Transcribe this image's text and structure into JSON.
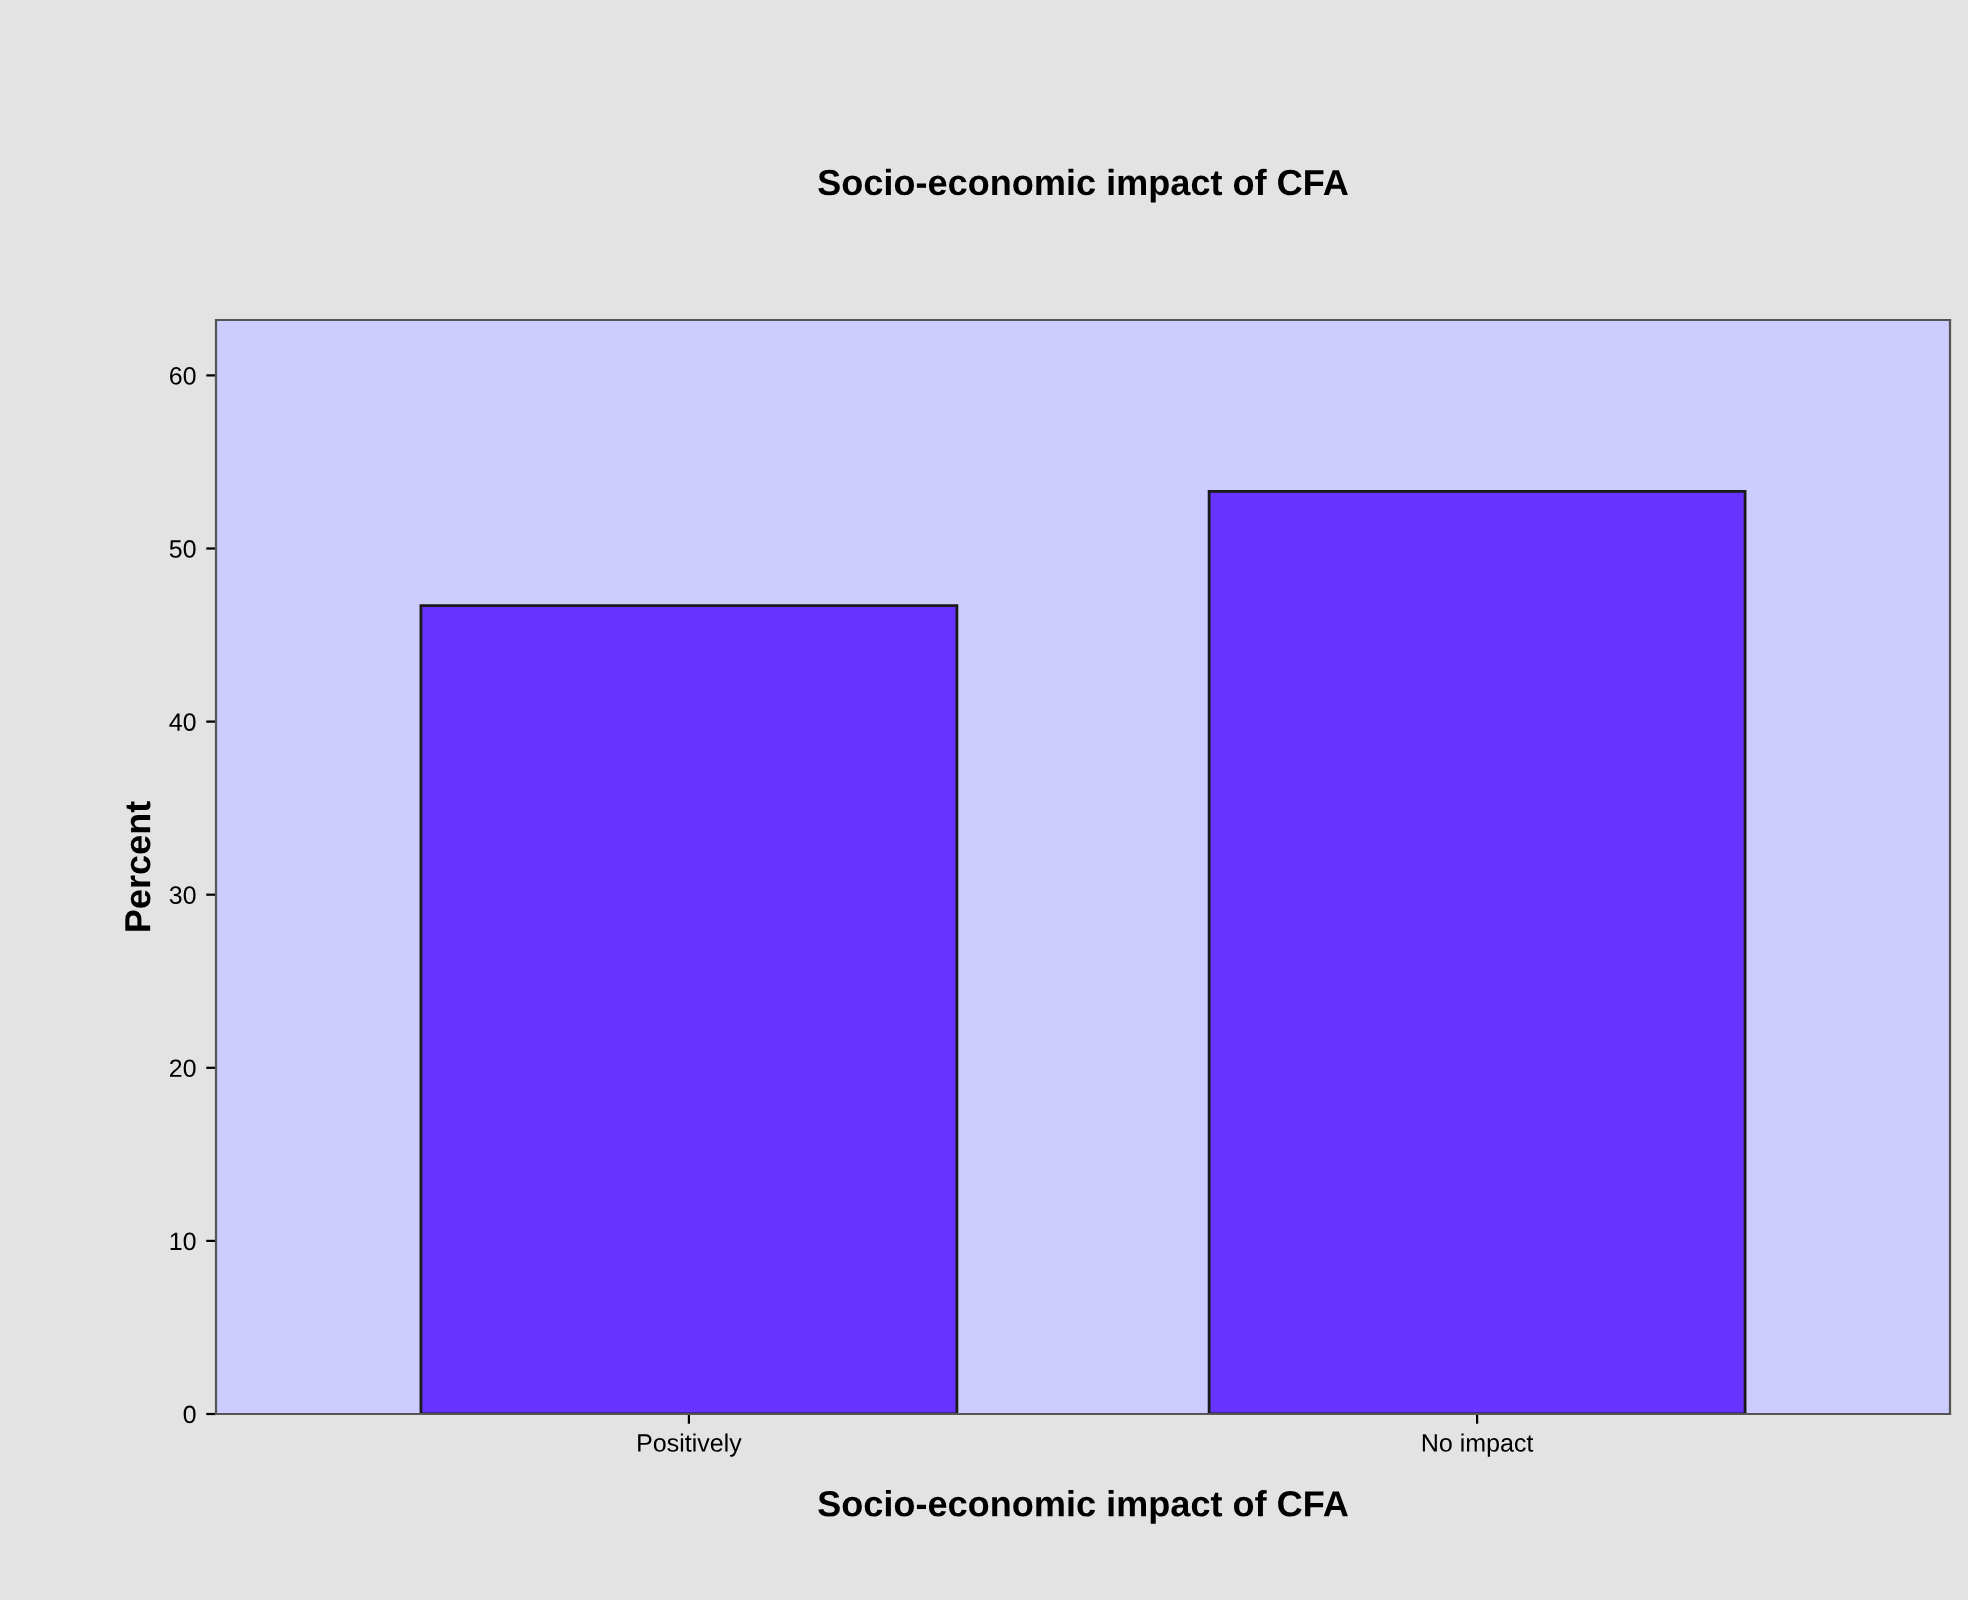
{
  "chart_data": {
    "type": "bar",
    "title": "Socio-economic impact of CFA",
    "xlabel": "Socio-economic impact of CFA",
    "ylabel": "Percent",
    "categories": [
      "Positively",
      "No impact"
    ],
    "values": [
      46.7,
      53.3
    ],
    "color": "#6633ff",
    "ylim": [
      0,
      63.2
    ],
    "yticks": [
      0,
      10,
      20,
      30,
      40,
      50,
      60
    ],
    "grid": false,
    "legend": false
  }
}
